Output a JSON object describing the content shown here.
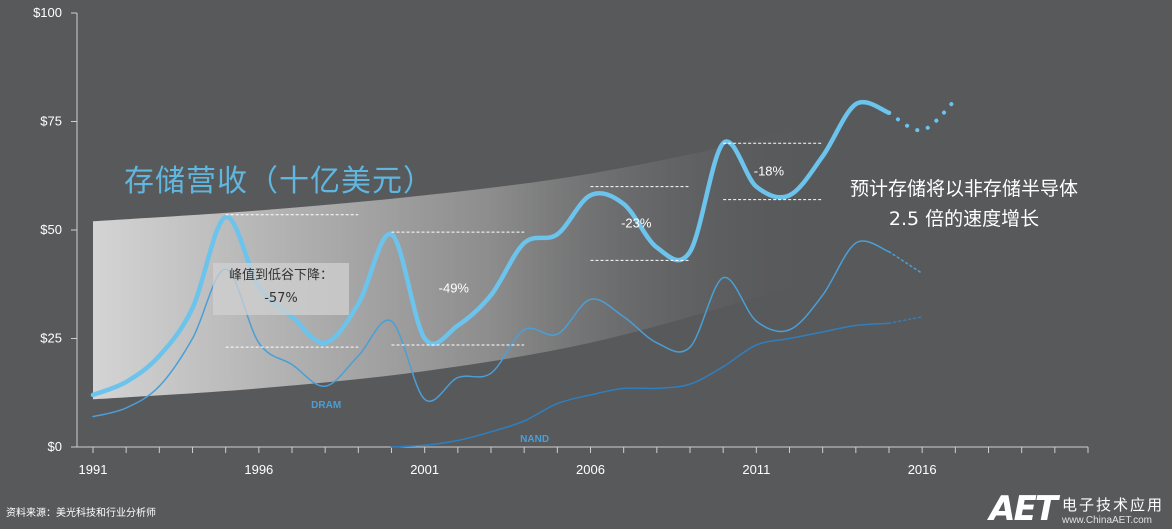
{
  "header": {
    "band_title": "存储营收（十亿美元）",
    "callout": [
      "预计存储将以非存储半导体",
      "2.5 倍的速度增长"
    ],
    "peak_box": [
      "峰值到低谷下降：",
      "-57%"
    ]
  },
  "source_note": "资料来源：美光科技和行业分析师",
  "watermark": {
    "logo": "AET",
    "cn": "电子技术应用",
    "url": "www.ChinaAET.com"
  },
  "colors": {
    "background": "#58595b",
    "memory": "#6cc3ec",
    "dram": "#4a9fd6",
    "nand": "#2f7fc0"
  },
  "chart_data": {
    "type": "line",
    "title": "存储营收（十亿美元）",
    "ylim": [
      0,
      100
    ],
    "xlim": [
      1991,
      2021
    ],
    "y_ticks": [
      0,
      25,
      50,
      75,
      100
    ],
    "y_tick_labels": [
      "$0",
      "$25",
      "$50",
      "$75",
      "$100"
    ],
    "x_ticks": [
      1991,
      1996,
      2001,
      2006,
      2011,
      2016
    ],
    "x_tick_labels": [
      "1991",
      "1996",
      "2001",
      "2006",
      "2011",
      "2016"
    ],
    "grid": false,
    "series": [
      {
        "key": "memory",
        "x": [
          1991,
          1992,
          1993,
          1994,
          1995,
          1996,
          1997,
          1998,
          1999,
          2000,
          2001,
          2002,
          2003,
          2004,
          2005,
          2006,
          2007,
          2008,
          2009,
          2010,
          2011,
          2012,
          2013,
          2014,
          2015
        ],
        "values": [
          12,
          15,
          21,
          32,
          53,
          37,
          30,
          24,
          33,
          49,
          25,
          28,
          35,
          47,
          49,
          58,
          56,
          46,
          45,
          70,
          60,
          58,
          67,
          79,
          77
        ],
        "forecast": {
          "x": [
            2015,
            2016,
            2017
          ],
          "values": [
            77,
            73,
            80
          ]
        }
      },
      {
        "key": "dram",
        "name": "DRAM",
        "x": [
          1991,
          1992,
          1993,
          1994,
          1995,
          1996,
          1997,
          1998,
          1999,
          2000,
          2001,
          2002,
          2003,
          2004,
          2005,
          2006,
          2007,
          2008,
          2009,
          2010,
          2011,
          2012,
          2013,
          2014,
          2015
        ],
        "values": [
          7,
          9,
          14,
          25,
          41,
          24,
          19,
          14,
          21,
          29,
          11,
          16,
          17,
          27,
          26,
          34,
          30,
          24,
          23,
          39,
          29,
          27,
          35,
          47,
          45
        ],
        "forecast": {
          "x": [
            2015,
            2016
          ],
          "values": [
            45,
            40
          ]
        }
      },
      {
        "key": "nand",
        "name": "NAND",
        "x": [
          2000,
          2001,
          2002,
          2003,
          2004,
          2005,
          2006,
          2007,
          2008,
          2009,
          2010,
          2011,
          2012,
          2013,
          2014,
          2015
        ],
        "values": [
          0,
          0.4,
          1.5,
          3.5,
          6,
          10,
          12,
          13.5,
          13.5,
          14.5,
          18.5,
          23.5,
          25,
          26.5,
          28,
          28.5
        ],
        "forecast": {
          "x": [
            2015,
            2016
          ],
          "values": [
            28.5,
            30
          ]
        }
      }
    ],
    "band": {
      "x": [
        1991,
        1996,
        2001,
        2006,
        2011,
        2013
      ],
      "upper": [
        52,
        54.5,
        58,
        63,
        71,
        77
      ],
      "lower": [
        11,
        13.5,
        17.5,
        24,
        34.5,
        40
      ]
    },
    "annotations": [
      {
        "peak": 53.5,
        "trough": 23,
        "x_from": 1995,
        "x_to": 1999,
        "pct": ""
      },
      {
        "peak": 49.5,
        "trough": 23.5,
        "x_from": 2000,
        "x_to": 2004,
        "pct": "-49%"
      },
      {
        "peak": 60,
        "trough": 43,
        "x_from": 2006,
        "x_to": 2009,
        "pct": "-23%"
      },
      {
        "peak": 70,
        "trough": 57,
        "x_from": 2010,
        "x_to": 2013,
        "pct": "-18%"
      }
    ]
  }
}
